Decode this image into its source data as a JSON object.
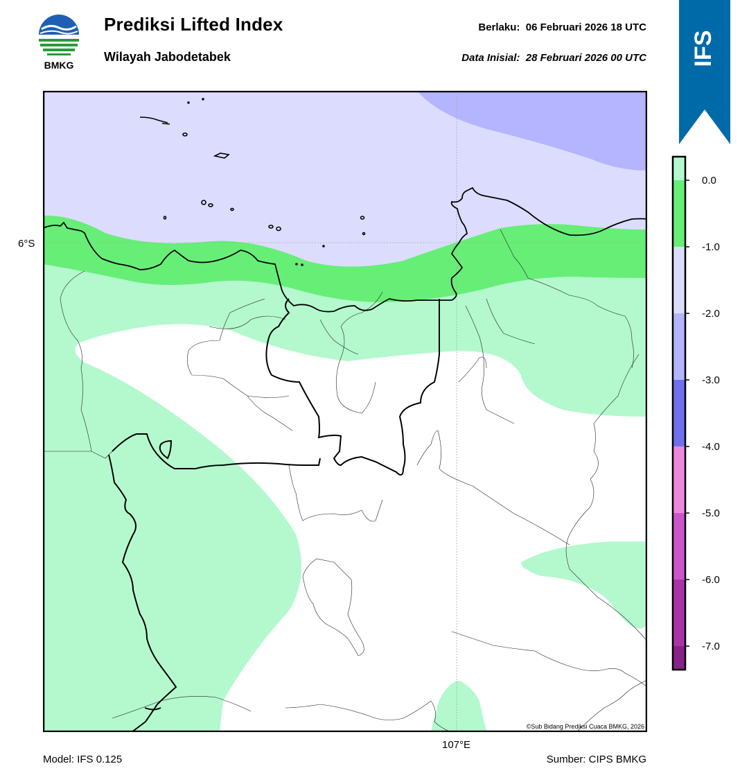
{
  "header": {
    "title": "Prediksi Lifted Index",
    "subtitle": "Wilayah Jabodetabek",
    "valid_label": "Berlaku:",
    "valid_value": "06 Februari 2026 18 UTC",
    "init_label": "Data Inisial:",
    "init_value": "28 Februari 2026 00 UTC"
  },
  "logo": {
    "text": "BMKG"
  },
  "ribbon": {
    "text": "IFS",
    "color": "#006aa8"
  },
  "map": {
    "lat_label": "6°S",
    "lon_label": "107°E",
    "copyright": "©Sub Bidang Prediksi Cuaca BMKG, 2026"
  },
  "footer": {
    "model": "Model: IFS 0.125",
    "source": "Sumber: CIPS BMKG"
  },
  "colorbar": {
    "ticks": [
      "0.0",
      "-1.0",
      "-2.0",
      "-3.0",
      "-4.0",
      "-5.0",
      "-6.0",
      "-7.0"
    ],
    "colors": [
      "#b3f9cd",
      "#66ee77",
      "#dcdcff",
      "#b4b4ff",
      "#7070ee",
      "#ee88dd",
      "#cc55cc",
      "#aa33aa",
      "#882288"
    ]
  }
}
